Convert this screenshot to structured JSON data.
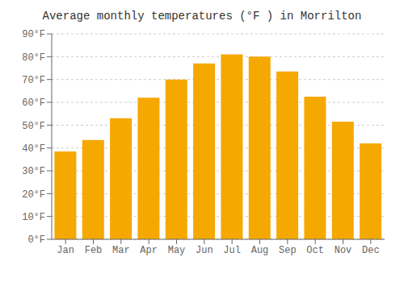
{
  "chart_data": {
    "type": "bar",
    "title": "Average monthly temperatures (°F ) in Morrilton",
    "categories": [
      "Jan",
      "Feb",
      "Mar",
      "Apr",
      "May",
      "Jun",
      "Jul",
      "Aug",
      "Sep",
      "Oct",
      "Nov",
      "Dec"
    ],
    "values": [
      38.5,
      43.5,
      53,
      62,
      70,
      77,
      81,
      80,
      73.5,
      62.5,
      51.5,
      42
    ],
    "color": "#F5A800",
    "ylim": [
      0,
      90
    ],
    "yticks": [
      {
        "value": 0,
        "label": "0°F"
      },
      {
        "value": 10,
        "label": "10°F"
      },
      {
        "value": 20,
        "label": "20°F"
      },
      {
        "value": 30,
        "label": "30°F"
      },
      {
        "value": 40,
        "label": "40°F"
      },
      {
        "value": 50,
        "label": "50°F"
      },
      {
        "value": 60,
        "label": "60°F"
      },
      {
        "value": 70,
        "label": "70°F"
      },
      {
        "value": 80,
        "label": "80°F"
      },
      {
        "value": 90,
        "label": "90°F"
      }
    ],
    "grid": true
  }
}
